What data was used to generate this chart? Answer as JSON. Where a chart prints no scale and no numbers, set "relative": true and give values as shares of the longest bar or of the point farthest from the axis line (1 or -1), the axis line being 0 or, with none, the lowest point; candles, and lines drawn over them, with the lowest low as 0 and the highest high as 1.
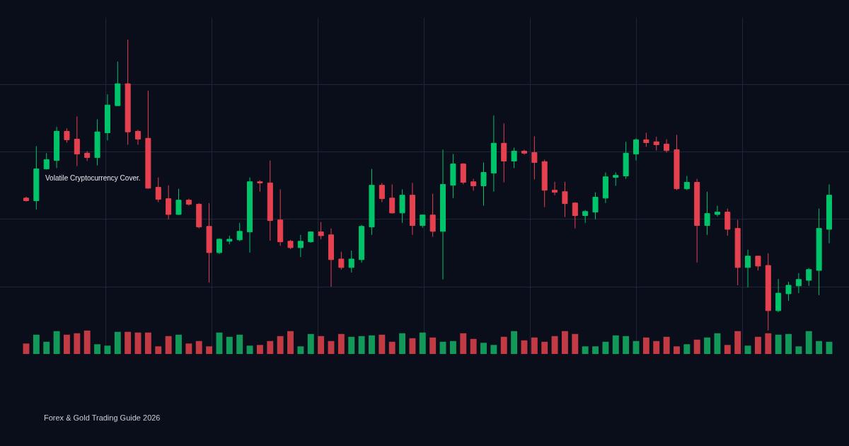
{
  "chart_data": [
    {
      "type": "candlestick",
      "relative": true,
      "tick_labels": false,
      "grid": true,
      "categories": [
        null,
        null,
        null,
        null,
        null,
        null,
        null,
        null,
        null,
        null,
        null,
        null,
        null,
        null,
        null,
        null,
        null,
        null,
        null,
        null,
        null,
        null,
        null,
        null,
        null,
        null,
        null,
        null,
        null,
        null,
        null,
        null,
        null,
        null,
        null,
        null,
        null,
        null,
        null,
        null,
        null,
        null,
        null,
        null,
        null,
        null,
        null,
        null,
        null,
        null,
        null,
        null,
        null,
        null,
        null,
        null,
        null,
        null,
        null,
        null,
        null,
        null,
        null,
        null,
        null,
        null,
        null,
        null,
        null,
        null,
        null,
        null,
        null,
        null,
        null,
        null,
        null,
        null,
        null,
        null
      ],
      "ohlc": [
        [
          0.457,
          0.462,
          0.445,
          0.448
        ],
        [
          0.448,
          0.635,
          0.418,
          0.557
        ],
        [
          0.557,
          0.611,
          0.555,
          0.589
        ],
        [
          0.586,
          0.701,
          0.56,
          0.686
        ],
        [
          0.686,
          0.696,
          0.647,
          0.657
        ],
        [
          0.659,
          0.737,
          0.567,
          0.608
        ],
        [
          0.611,
          0.618,
          0.584,
          0.596
        ],
        [
          0.596,
          0.727,
          0.569,
          0.684
        ],
        [
          0.681,
          0.813,
          0.655,
          0.776
        ],
        [
          0.774,
          0.925,
          0.774,
          0.849
        ],
        [
          0.849,
          1.0,
          0.64,
          0.684
        ],
        [
          0.686,
          0.691,
          0.64,
          0.659
        ],
        [
          0.662,
          0.825,
          0.489,
          0.491
        ],
        [
          0.494,
          0.528,
          0.443,
          0.453
        ],
        [
          0.455,
          0.501,
          0.384,
          0.401
        ],
        [
          0.401,
          0.489,
          0.399,
          0.45
        ],
        [
          0.45,
          0.455,
          0.431,
          0.436
        ],
        [
          0.436,
          0.44,
          0.353,
          0.358
        ],
        [
          0.36,
          0.44,
          0.168,
          0.27
        ],
        [
          0.27,
          0.319,
          0.265,
          0.316
        ],
        [
          0.309,
          0.328,
          0.299,
          0.316
        ],
        [
          0.314,
          0.372,
          0.309,
          0.343
        ],
        [
          0.341,
          0.528,
          0.27,
          0.513
        ],
        [
          0.513,
          0.518,
          0.479,
          0.509
        ],
        [
          0.509,
          0.586,
          0.311,
          0.38
        ],
        [
          0.382,
          0.487,
          0.294,
          0.307
        ],
        [
          0.309,
          0.314,
          0.282,
          0.287
        ],
        [
          0.287,
          0.331,
          0.255,
          0.309
        ],
        [
          0.307,
          0.343,
          0.304,
          0.341
        ],
        [
          0.341,
          0.375,
          0.316,
          0.328
        ],
        [
          0.331,
          0.353,
          0.153,
          0.246
        ],
        [
          0.248,
          0.273,
          0.212,
          0.219
        ],
        [
          0.219,
          0.277,
          0.202,
          0.248
        ],
        [
          0.246,
          0.365,
          0.236,
          0.36
        ],
        [
          0.358,
          0.557,
          0.331,
          0.501
        ],
        [
          0.501,
          0.509,
          0.443,
          0.455
        ],
        [
          0.457,
          0.504,
          0.404,
          0.406
        ],
        [
          0.406,
          0.487,
          0.372,
          0.467
        ],
        [
          0.467,
          0.509,
          0.331,
          0.363
        ],
        [
          0.363,
          0.401,
          0.355,
          0.399
        ],
        [
          0.399,
          0.472,
          0.324,
          0.343
        ],
        [
          0.343,
          0.623,
          0.178,
          0.504
        ],
        [
          0.501,
          0.608,
          0.457,
          0.574
        ],
        [
          0.574,
          0.577,
          0.504,
          0.511
        ],
        [
          0.513,
          0.523,
          0.482,
          0.499
        ],
        [
          0.499,
          0.579,
          0.431,
          0.545
        ],
        [
          0.543,
          0.74,
          0.479,
          0.645
        ],
        [
          0.645,
          0.713,
          0.511,
          0.584
        ],
        [
          0.584,
          0.63,
          0.56,
          0.618
        ],
        [
          0.618,
          0.623,
          0.606,
          0.611
        ],
        [
          0.613,
          0.669,
          0.521,
          0.579
        ],
        [
          0.582,
          0.589,
          0.426,
          0.484
        ],
        [
          0.484,
          0.513,
          0.467,
          0.477
        ],
        [
          0.479,
          0.513,
          0.392,
          0.438
        ],
        [
          0.44,
          0.443,
          0.353,
          0.397
        ],
        [
          0.397,
          0.416,
          0.372,
          0.411
        ],
        [
          0.409,
          0.477,
          0.384,
          0.46
        ],
        [
          0.457,
          0.545,
          0.44,
          0.53
        ],
        [
          0.528,
          0.545,
          0.499,
          0.535
        ],
        [
          0.533,
          0.65,
          0.523,
          0.611
        ],
        [
          0.608,
          0.662,
          0.586,
          0.657
        ],
        [
          0.657,
          0.681,
          0.633,
          0.647
        ],
        [
          0.65,
          0.667,
          0.62,
          0.64
        ],
        [
          0.642,
          0.659,
          0.613,
          0.62
        ],
        [
          0.623,
          0.674,
          0.484,
          0.489
        ],
        [
          0.489,
          0.533,
          0.484,
          0.511
        ],
        [
          0.511,
          0.523,
          0.236,
          0.363
        ],
        [
          0.363,
          0.479,
          0.331,
          0.404
        ],
        [
          0.401,
          0.431,
          0.394,
          0.409
        ],
        [
          0.409,
          0.421,
          0.328,
          0.35
        ],
        [
          0.353,
          0.382,
          0.158,
          0.219
        ],
        [
          0.219,
          0.28,
          0.151,
          0.258
        ],
        [
          0.258,
          0.258,
          0.209,
          0.224
        ],
        [
          0.226,
          0.268,
          0.0,
          0.071
        ],
        [
          0.071,
          0.18,
          0.066,
          0.131
        ],
        [
          0.129,
          0.17,
          0.105,
          0.158
        ],
        [
          0.156,
          0.2,
          0.131,
          0.178
        ],
        [
          0.175,
          0.217,
          0.156,
          0.212
        ],
        [
          0.209,
          0.421,
          0.124,
          0.353
        ],
        [
          0.35,
          0.504,
          0.302,
          0.467
        ]
      ],
      "colors": [
        "#e5414f",
        "#00c46a",
        "#00c46a",
        "#00c46a",
        "#e5414f",
        "#e5414f",
        "#e5414f",
        "#00c46a",
        "#00c46a",
        "#00c46a",
        "#e5414f",
        "#e5414f",
        "#e5414f",
        "#e5414f",
        "#e5414f",
        "#00c46a",
        "#e5414f",
        "#e5414f",
        "#e5414f",
        "#00c46a",
        "#00c46a",
        "#00c46a",
        "#00c46a",
        "#e5414f",
        "#e5414f",
        "#e5414f",
        "#e5414f",
        "#00c46a",
        "#00c46a",
        "#e5414f",
        "#e5414f",
        "#e5414f",
        "#00c46a",
        "#00c46a",
        "#00c46a",
        "#e5414f",
        "#e5414f",
        "#00c46a",
        "#e5414f",
        "#00c46a",
        "#e5414f",
        "#00c46a",
        "#00c46a",
        "#e5414f",
        "#e5414f",
        "#00c46a",
        "#00c46a",
        "#e5414f",
        "#00c46a",
        "#e5414f",
        "#e5414f",
        "#e5414f",
        "#e5414f",
        "#e5414f",
        "#e5414f",
        "#00c46a",
        "#00c46a",
        "#00c46a",
        "#00c46a",
        "#00c46a",
        "#00c46a",
        "#e5414f",
        "#e5414f",
        "#e5414f",
        "#e5414f",
        "#00c46a",
        "#e5414f",
        "#00c46a",
        "#00c46a",
        "#e5414f",
        "#e5414f",
        "#00c46a",
        "#e5414f",
        "#e5414f",
        "#00c46a",
        "#00c46a",
        "#00c46a",
        "#00c46a",
        "#00c46a",
        "#00c46a"
      ],
      "annotations": [
        "Volatile Cryptocurrency Cover."
      ]
    },
    {
      "type": "bar",
      "relative": true,
      "tick_labels": false,
      "categories": [
        null,
        null,
        null,
        null,
        null,
        null,
        null,
        null,
        null,
        null,
        null,
        null,
        null,
        null,
        null,
        null,
        null,
        null,
        null,
        null,
        null,
        null,
        null,
        null,
        null,
        null,
        null,
        null,
        null,
        null,
        null,
        null,
        null,
        null,
        null,
        null,
        null,
        null,
        null,
        null,
        null,
        null,
        null,
        null,
        null,
        null,
        null,
        null,
        null,
        null,
        null,
        null,
        null,
        null,
        null,
        null,
        null,
        null,
        null,
        null,
        null,
        null,
        null,
        null,
        null,
        null,
        null,
        null,
        null,
        null,
        null,
        null,
        null,
        null,
        null,
        null,
        null,
        null,
        null,
        null
      ],
      "values": [
        0.45,
        0.82,
        0.52,
        0.97,
        0.82,
        0.88,
        1,
        0.42,
        0.36,
        0.94,
        0.94,
        0.91,
        0.91,
        0.33,
        0.76,
        0.82,
        0.45,
        0.55,
        0.33,
        0.91,
        0.73,
        0.82,
        0.36,
        0.39,
        0.55,
        0.76,
        0.97,
        0.33,
        0.85,
        0.76,
        0.55,
        0.85,
        0.73,
        0.76,
        0.79,
        0.82,
        0.52,
        0.88,
        0.67,
        0.91,
        0.7,
        0.52,
        0.55,
        0.88,
        0.64,
        0.48,
        0.39,
        0.73,
        0.97,
        0.58,
        0.7,
        0.52,
        0.76,
        0.97,
        0.85,
        0.33,
        0.33,
        0.52,
        0.79,
        0.76,
        0.55,
        0.7,
        0.55,
        0.73,
        0.33,
        0.42,
        0.61,
        0.7,
        0.88,
        0.39,
        0.97,
        0.36,
        0.73,
        0.88,
        0.82,
        0.85,
        0.33,
        0.97,
        0.55,
        0.52
      ],
      "colors": [
        "#c23a44",
        "#12995a",
        "#12995a",
        "#12995a",
        "#c23a44",
        "#c23a44",
        "#c23a44",
        "#12995a",
        "#12995a",
        "#12995a",
        "#c23a44",
        "#c23a44",
        "#c23a44",
        "#c23a44",
        "#c23a44",
        "#12995a",
        "#c23a44",
        "#c23a44",
        "#c23a44",
        "#12995a",
        "#12995a",
        "#12995a",
        "#12995a",
        "#c23a44",
        "#c23a44",
        "#c23a44",
        "#c23a44",
        "#12995a",
        "#12995a",
        "#c23a44",
        "#c23a44",
        "#c23a44",
        "#12995a",
        "#12995a",
        "#12995a",
        "#c23a44",
        "#c23a44",
        "#12995a",
        "#c23a44",
        "#12995a",
        "#c23a44",
        "#12995a",
        "#12995a",
        "#c23a44",
        "#c23a44",
        "#12995a",
        "#12995a",
        "#c23a44",
        "#12995a",
        "#c23a44",
        "#c23a44",
        "#c23a44",
        "#c23a44",
        "#c23a44",
        "#c23a44",
        "#12995a",
        "#12995a",
        "#12995a",
        "#12995a",
        "#12995a",
        "#12995a",
        "#c23a44",
        "#c23a44",
        "#c23a44",
        "#c23a44",
        "#12995a",
        "#c23a44",
        "#12995a",
        "#12995a",
        "#c23a44",
        "#c23a44",
        "#12995a",
        "#c23a44",
        "#c23a44",
        "#12995a",
        "#12995a",
        "#12995a",
        "#12995a",
        "#12995a",
        "#12995a"
      ],
      "annotations": [
        "Forex & Gold Trading Guide 2026"
      ]
    }
  ]
}
